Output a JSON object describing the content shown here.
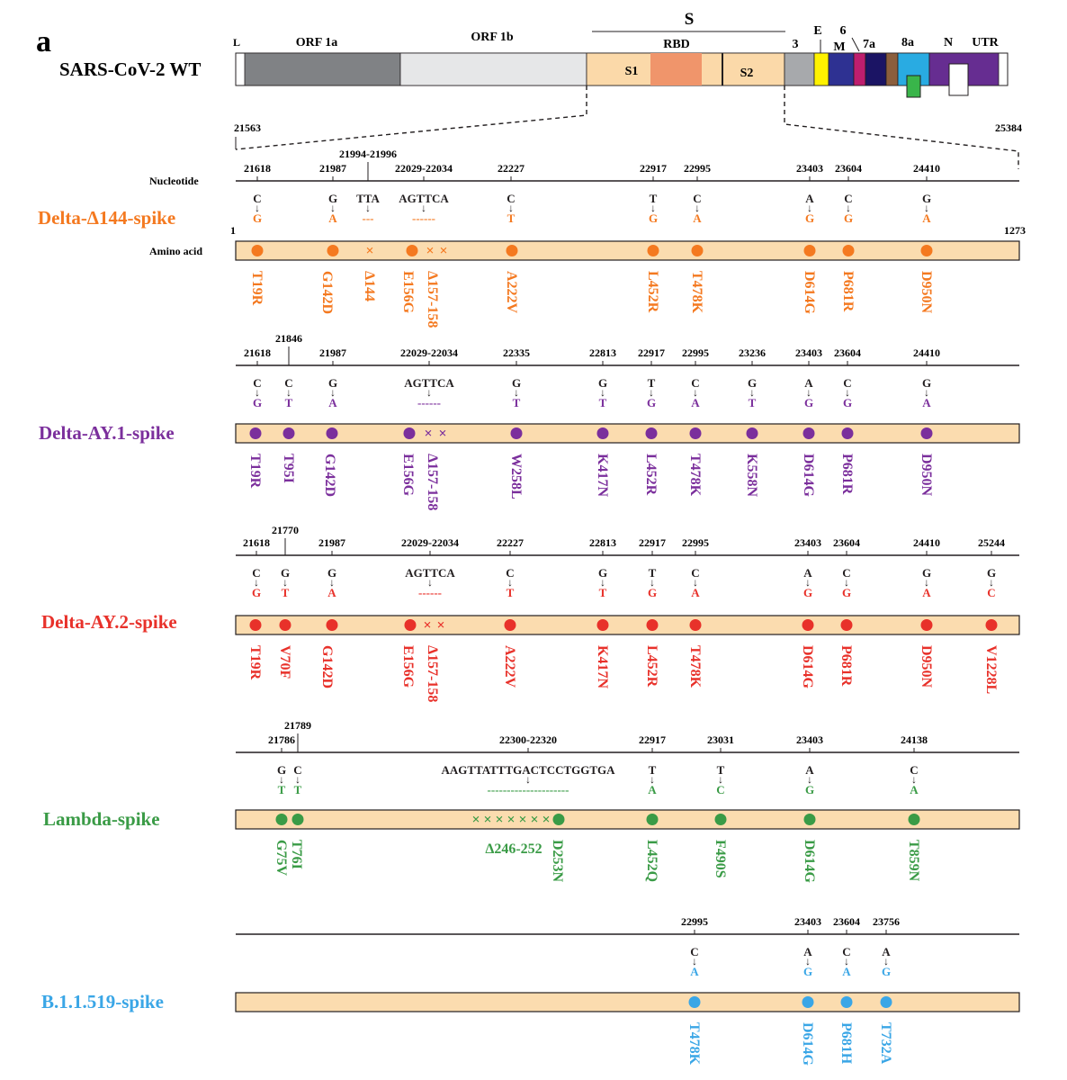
{
  "panel_label": "a",
  "genome": {
    "name": "SARS-CoV-2 WT",
    "labels": {
      "L": "L",
      "orf1a": "ORF 1a",
      "orf1b": "ORF 1b",
      "S": "S",
      "RBD": "RBD",
      "S1": "S1",
      "S2": "S2",
      "g3": "3",
      "E": "E",
      "g6": "6",
      "M": "M",
      "g7a": "7a",
      "g8a": "8a",
      "N": "N",
      "UTR": "UTR"
    },
    "colors": {
      "orf1a": "#808285",
      "orf1b": "#e6e7e8",
      "spike": "#fbd9a9",
      "rbd": "#f0956b",
      "g3": "#a7a9ac",
      "E": "#fff200",
      "M": "#2e3192",
      "g6": "#be1e6e",
      "g7a": "#1b1464",
      "g7b": "#8b5e3c",
      "g8a": "#29abe2",
      "N": "#662d91",
      "g9b": "#39b54a"
    },
    "zoom_start": "21563",
    "zoom_end": "25384"
  },
  "labels": {
    "nucleotide": "Nucleotide",
    "amino_acid": "Amino acid",
    "aa_start": "1",
    "aa_end": "1273"
  },
  "variants": [
    {
      "name": "Delta-Δ144-spike",
      "color": "#f47920",
      "nt_positions": [
        "21618",
        "21987",
        "21994-21996",
        "22029-22034",
        "22227",
        "22917",
        "22995",
        "23403",
        "23604",
        "24410"
      ],
      "ref_bases": [
        "C",
        "G",
        "TTA",
        "AGTTCA",
        "C",
        "T",
        "C",
        "A",
        "C",
        "G"
      ],
      "alt_bases": [
        "G",
        "A",
        "---",
        "------",
        "T",
        "G",
        "A",
        "G",
        "G",
        "A"
      ],
      "aa_mutations": [
        "T19R",
        "G142D",
        "Δ144",
        "E156G",
        "Δ157-158",
        "A222V",
        "L452R",
        "T478K",
        "D614G",
        "P681R",
        "D950N"
      ]
    },
    {
      "name": "Delta-AY.1-spike",
      "color": "#7b2f9c",
      "nt_positions": [
        "21618",
        "21846",
        "21987",
        "22029-22034",
        "22335",
        "22813",
        "22917",
        "22995",
        "23236",
        "23403",
        "23604",
        "24410"
      ],
      "ref_bases": [
        "C",
        "C",
        "G",
        "AGTTCA",
        "G",
        "G",
        "T",
        "C",
        "G",
        "A",
        "C",
        "G"
      ],
      "alt_bases": [
        "G",
        "T",
        "A",
        "------",
        "T",
        "T",
        "G",
        "A",
        "T",
        "G",
        "G",
        "A"
      ],
      "aa_mutations": [
        "T19R",
        "T95I",
        "G142D",
        "E156G",
        "Δ157-158",
        "W258L",
        "K417N",
        "L452R",
        "T478K",
        "K558N",
        "D614G",
        "P681R",
        "D950N"
      ]
    },
    {
      "name": "Delta-AY.2-spike",
      "color": "#e8312a",
      "nt_positions": [
        "21618",
        "21770",
        "21987",
        "22029-22034",
        "22227",
        "22813",
        "22917",
        "22995",
        "23403",
        "23604",
        "24410",
        "25244"
      ],
      "ref_bases": [
        "C",
        "G",
        "G",
        "AGTTCA",
        "C",
        "G",
        "T",
        "C",
        "A",
        "C",
        "G",
        "G"
      ],
      "alt_bases": [
        "G",
        "T",
        "A",
        "------",
        "T",
        "T",
        "G",
        "A",
        "G",
        "G",
        "A",
        "C"
      ],
      "aa_mutations": [
        "T19R",
        "V70F",
        "G142D",
        "E156G",
        "Δ157-158",
        "A222V",
        "K417N",
        "L452R",
        "T478K",
        "D614G",
        "P681R",
        "D950N",
        "V1228L"
      ]
    },
    {
      "name": "Lambda-spike",
      "color": "#3a9b46",
      "nt_positions": [
        "21786",
        "21789",
        "22300-22320",
        "22917",
        "23031",
        "23403",
        "24138"
      ],
      "ref_bases": [
        "G",
        "C",
        "AAGTTATTTGACTCCTGGTGA",
        "T",
        "T",
        "A",
        "C"
      ],
      "alt_bases": [
        "T",
        "T",
        "---------------------",
        "A",
        "C",
        "G",
        "A"
      ],
      "aa_mutations": [
        "G75V",
        "T76I",
        "Δ246-252",
        "D253N",
        "L452Q",
        "F490S",
        "D614G",
        "T859N"
      ]
    },
    {
      "name": "B.1.1.519-spike",
      "color": "#3aa6e6",
      "nt_positions": [
        "22995",
        "23403",
        "23604",
        "23756"
      ],
      "ref_bases": [
        "C",
        "A",
        "C",
        "A"
      ],
      "alt_bases": [
        "A",
        "G",
        "A",
        "G"
      ],
      "aa_mutations": [
        "T478K",
        "D614G",
        "P681H",
        "T732A"
      ]
    }
  ]
}
